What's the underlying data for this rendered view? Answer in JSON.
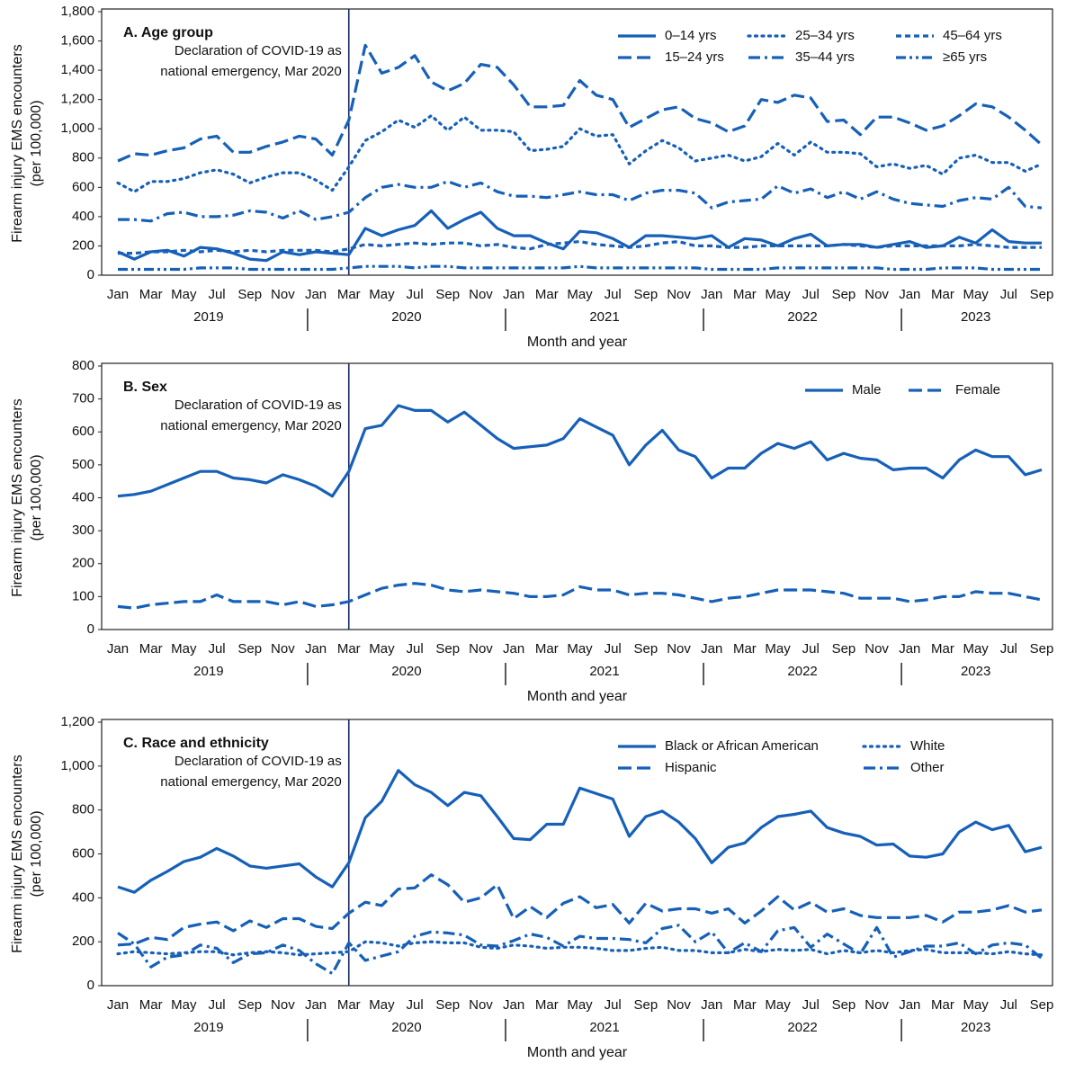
{
  "chart_data": [
    {
      "type": "line",
      "title": "A. Age group",
      "y_label": [
        "Firearm injury EMS encounters",
        "(per 100,000)"
      ],
      "x_label": "Month and year",
      "categories": [
        "Jan",
        null,
        "Mar",
        null,
        "May",
        null,
        "Jul",
        null,
        "Sep",
        null,
        "Nov",
        null,
        "Jan",
        null,
        "Mar",
        null,
        "May",
        null,
        "Jul",
        null,
        "Sep",
        null,
        "Nov",
        null,
        "Jan",
        null,
        "Mar",
        null,
        "May",
        null,
        "Jul",
        null,
        "Sep",
        null,
        "Nov",
        null,
        "Jan",
        null,
        "Mar",
        null,
        "May",
        null,
        "Jul",
        null,
        "Sep",
        null,
        "Nov",
        null,
        "Jan",
        null,
        "Mar",
        null,
        "May",
        null,
        "Jul",
        null,
        "Sep"
      ],
      "years": [
        "2019",
        "2020",
        "2021",
        "2022",
        "2023"
      ],
      "annotation": [
        "Declaration of COVID-19 as",
        "national emergency, Mar 2020"
      ],
      "ylim": [
        0,
        1800
      ],
      "yticks": [
        0,
        200,
        400,
        600,
        800,
        {
          "value": 1000,
          "label": "1,000"
        },
        {
          "value": 1200,
          "label": "1,200"
        },
        {
          "value": 1400,
          "label": "1,400"
        },
        {
          "value": 1600,
          "label": "1,600"
        },
        {
          "value": 1800,
          "label": "1,800"
        }
      ],
      "grid": false,
      "legend": {
        "position": "upper right",
        "columns": 3
      },
      "series": [
        {
          "name": "0–14 yrs",
          "color": "#1660b8",
          "dash": "solid",
          "values": [
            160,
            110,
            160,
            170,
            130,
            190,
            180,
            150,
            110,
            100,
            160,
            140,
            160,
            150,
            140,
            320,
            270,
            310,
            340,
            440,
            320,
            380,
            430,
            320,
            270,
            270,
            220,
            180,
            300,
            290,
            250,
            190,
            270,
            270,
            260,
            250,
            270,
            190,
            250,
            240,
            200,
            250,
            280,
            200,
            210,
            210,
            190,
            210,
            230,
            190,
            200,
            260,
            220,
            310,
            230,
            220,
            220
          ]
        },
        {
          "name": "15–24 yrs",
          "color": "#1660b8",
          "dash": "dashed",
          "values": [
            780,
            830,
            820,
            850,
            870,
            930,
            950,
            840,
            840,
            880,
            910,
            950,
            930,
            820,
            1060,
            1570,
            1380,
            1420,
            1500,
            1320,
            1260,
            1310,
            1440,
            1420,
            1300,
            1150,
            1150,
            1160,
            1330,
            1230,
            1200,
            1010,
            1070,
            1130,
            1150,
            1070,
            1040,
            980,
            1020,
            1200,
            1180,
            1230,
            1210,
            1050,
            1060,
            960,
            1080,
            1080,
            1040,
            990,
            1020,
            1090,
            1170,
            1150,
            1080,
            990,
            890
          ]
        },
        {
          "name": "25–34 yrs",
          "color": "#1660b8",
          "dash": "dotted",
          "values": [
            630,
            570,
            640,
            640,
            660,
            700,
            720,
            690,
            630,
            670,
            700,
            700,
            650,
            580,
            740,
            920,
            980,
            1060,
            1010,
            1090,
            990,
            1080,
            990,
            990,
            980,
            850,
            860,
            880,
            1000,
            950,
            960,
            760,
            850,
            920,
            870,
            780,
            800,
            820,
            780,
            810,
            900,
            820,
            910,
            840,
            840,
            830,
            740,
            760,
            730,
            750,
            690,
            800,
            820,
            770,
            770,
            710,
            760
          ]
        },
        {
          "name": "35–44 yrs",
          "color": "#1660b8",
          "dash": "dashdot",
          "values": [
            380,
            380,
            370,
            420,
            430,
            400,
            400,
            410,
            440,
            430,
            390,
            440,
            380,
            400,
            430,
            530,
            600,
            620,
            600,
            600,
            640,
            600,
            630,
            570,
            540,
            540,
            530,
            550,
            570,
            550,
            550,
            510,
            560,
            580,
            580,
            560,
            460,
            500,
            510,
            520,
            610,
            560,
            590,
            530,
            570,
            520,
            570,
            520,
            490,
            480,
            470,
            510,
            530,
            520,
            600,
            470,
            460
          ]
        },
        {
          "name": "45–64 yrs",
          "color": "#1660b8",
          "dash": "shortdash",
          "values": [
            150,
            150,
            160,
            160,
            170,
            160,
            170,
            160,
            170,
            160,
            170,
            170,
            170,
            160,
            180,
            210,
            200,
            210,
            220,
            210,
            220,
            220,
            200,
            210,
            190,
            180,
            210,
            220,
            230,
            210,
            200,
            190,
            200,
            220,
            230,
            200,
            200,
            190,
            190,
            200,
            200,
            200,
            200,
            200,
            210,
            200,
            190,
            200,
            200,
            200,
            200,
            200,
            210,
            200,
            190,
            190,
            190
          ]
        },
        {
          "name": "≥65 yrs",
          "color": "#1660b8",
          "dash": "dashdotdot",
          "values": [
            40,
            40,
            40,
            40,
            40,
            50,
            50,
            50,
            40,
            40,
            40,
            40,
            40,
            40,
            50,
            60,
            60,
            60,
            50,
            60,
            60,
            50,
            50,
            50,
            50,
            50,
            50,
            50,
            60,
            50,
            50,
            50,
            50,
            50,
            50,
            50,
            40,
            40,
            40,
            40,
            50,
            50,
            50,
            50,
            50,
            50,
            50,
            40,
            40,
            40,
            50,
            50,
            50,
            40,
            40,
            40,
            40
          ]
        }
      ]
    },
    {
      "type": "line",
      "title": "B. Sex",
      "y_label": [
        "Firearm injury EMS encounters",
        "(per 100,000)"
      ],
      "x_label": "Month and year",
      "categories": [
        "Jan",
        null,
        "Mar",
        null,
        "May",
        null,
        "Jul",
        null,
        "Sep",
        null,
        "Nov",
        null,
        "Jan",
        null,
        "Mar",
        null,
        "May",
        null,
        "Jul",
        null,
        "Sep",
        null,
        "Nov",
        null,
        "Jan",
        null,
        "Mar",
        null,
        "May",
        null,
        "Jul",
        null,
        "Sep",
        null,
        "Nov",
        null,
        "Jan",
        null,
        "Mar",
        null,
        "May",
        null,
        "Jul",
        null,
        "Sep",
        null,
        "Nov",
        null,
        "Jan",
        null,
        "Mar",
        null,
        "May",
        null,
        "Jul",
        null,
        "Sep"
      ],
      "years": [
        "2019",
        "2020",
        "2021",
        "2022",
        "2023"
      ],
      "annotation": [
        "Declaration of COVID-19 as",
        "national emergency, Mar 2020"
      ],
      "ylim": [
        0,
        800
      ],
      "yticks": [
        0,
        100,
        200,
        300,
        400,
        500,
        600,
        700,
        800
      ],
      "grid": false,
      "legend": {
        "position": "upper right",
        "columns": 2
      },
      "series": [
        {
          "name": "Male",
          "color": "#1660b8",
          "dash": "solid",
          "values": [
            405,
            410,
            420,
            440,
            460,
            480,
            480,
            460,
            455,
            445,
            470,
            455,
            435,
            405,
            480,
            610,
            620,
            680,
            665,
            665,
            630,
            660,
            620,
            580,
            550,
            555,
            560,
            580,
            640,
            615,
            590,
            500,
            560,
            605,
            545,
            525,
            460,
            490,
            490,
            535,
            565,
            550,
            570,
            515,
            535,
            520,
            515,
            485,
            490,
            490,
            460,
            515,
            545,
            525,
            525,
            470,
            485
          ]
        },
        {
          "name": "Female",
          "color": "#1660b8",
          "dash": "dashed",
          "values": [
            70,
            65,
            75,
            80,
            85,
            85,
            105,
            85,
            85,
            85,
            75,
            85,
            70,
            75,
            85,
            105,
            125,
            135,
            140,
            135,
            120,
            115,
            120,
            115,
            110,
            100,
            100,
            105,
            130,
            120,
            120,
            105,
            110,
            110,
            105,
            95,
            85,
            95,
            100,
            110,
            120,
            120,
            120,
            115,
            110,
            95,
            95,
            95,
            85,
            90,
            100,
            100,
            115,
            110,
            110,
            100,
            90
          ]
        }
      ]
    },
    {
      "type": "line",
      "title": "C. Race and ethnicity",
      "y_label": [
        "Firearm injury EMS encounters",
        "(per 100,000)"
      ],
      "x_label": "Month and year",
      "categories": [
        "Jan",
        null,
        "Mar",
        null,
        "May",
        null,
        "Jul",
        null,
        "Sep",
        null,
        "Nov",
        null,
        "Jan",
        null,
        "Mar",
        null,
        "May",
        null,
        "Jul",
        null,
        "Sep",
        null,
        "Nov",
        null,
        "Jan",
        null,
        "Mar",
        null,
        "May",
        null,
        "Jul",
        null,
        "Sep",
        null,
        "Nov",
        null,
        "Jan",
        null,
        "Mar",
        null,
        "May",
        null,
        "Jul",
        null,
        "Sep",
        null,
        "Nov",
        null,
        "Jan",
        null,
        "Mar",
        null,
        "May",
        null,
        "Jul",
        null,
        "Sep"
      ],
      "years": [
        "2019",
        "2020",
        "2021",
        "2022",
        "2023"
      ],
      "annotation": [
        "Declaration of COVID-19 as",
        "national emergency, Mar 2020"
      ],
      "ylim": [
        0,
        1200
      ],
      "yticks": [
        0,
        200,
        400,
        600,
        800,
        {
          "value": 1000,
          "label": "1,000"
        },
        {
          "value": 1200,
          "label": "1,200"
        }
      ],
      "grid": false,
      "legend": {
        "position": "upper right",
        "columns": 2
      },
      "series": [
        {
          "name": "Black or African American",
          "color": "#1660b8",
          "dash": "solid",
          "values": [
            450,
            425,
            480,
            520,
            565,
            585,
            625,
            590,
            545,
            535,
            545,
            555,
            495,
            450,
            560,
            765,
            840,
            980,
            915,
            880,
            820,
            880,
            865,
            770,
            670,
            665,
            735,
            735,
            900,
            875,
            850,
            680,
            770,
            795,
            745,
            670,
            560,
            630,
            650,
            720,
            770,
            780,
            795,
            720,
            695,
            680,
            640,
            645,
            590,
            585,
            600,
            700,
            745,
            710,
            730,
            610,
            630
          ]
        },
        {
          "name": "Hispanic",
          "color": "#1660b8",
          "dash": "dashed",
          "values": [
            185,
            190,
            220,
            210,
            265,
            280,
            290,
            250,
            295,
            265,
            305,
            305,
            270,
            260,
            330,
            380,
            365,
            440,
            445,
            505,
            460,
            380,
            400,
            460,
            305,
            360,
            310,
            375,
            405,
            355,
            370,
            285,
            375,
            340,
            350,
            350,
            330,
            350,
            285,
            340,
            405,
            345,
            380,
            335,
            350,
            320,
            310,
            310,
            310,
            320,
            290,
            335,
            335,
            345,
            365,
            335,
            345
          ]
        },
        {
          "name": "White",
          "color": "#1660b8",
          "dash": "dotted",
          "values": [
            145,
            155,
            150,
            145,
            150,
            155,
            155,
            140,
            150,
            155,
            150,
            140,
            145,
            150,
            155,
            200,
            195,
            180,
            195,
            200,
            195,
            195,
            175,
            170,
            185,
            180,
            170,
            175,
            175,
            170,
            160,
            160,
            170,
            175,
            160,
            160,
            150,
            150,
            165,
            155,
            165,
            160,
            165,
            145,
            160,
            150,
            160,
            150,
            160,
            165,
            150,
            150,
            150,
            145,
            155,
            145,
            140
          ]
        },
        {
          "name": "Other",
          "color": "#1660b8",
          "dash": "dashdot",
          "values": [
            240,
            190,
            85,
            130,
            140,
            185,
            170,
            105,
            145,
            150,
            185,
            160,
            100,
            55,
            195,
            115,
            135,
            155,
            225,
            245,
            240,
            230,
            185,
            180,
            205,
            235,
            220,
            180,
            225,
            215,
            215,
            210,
            195,
            260,
            275,
            200,
            245,
            150,
            195,
            155,
            250,
            265,
            175,
            235,
            190,
            145,
            265,
            130,
            155,
            180,
            180,
            195,
            145,
            185,
            195,
            185,
            125
          ]
        }
      ]
    }
  ]
}
